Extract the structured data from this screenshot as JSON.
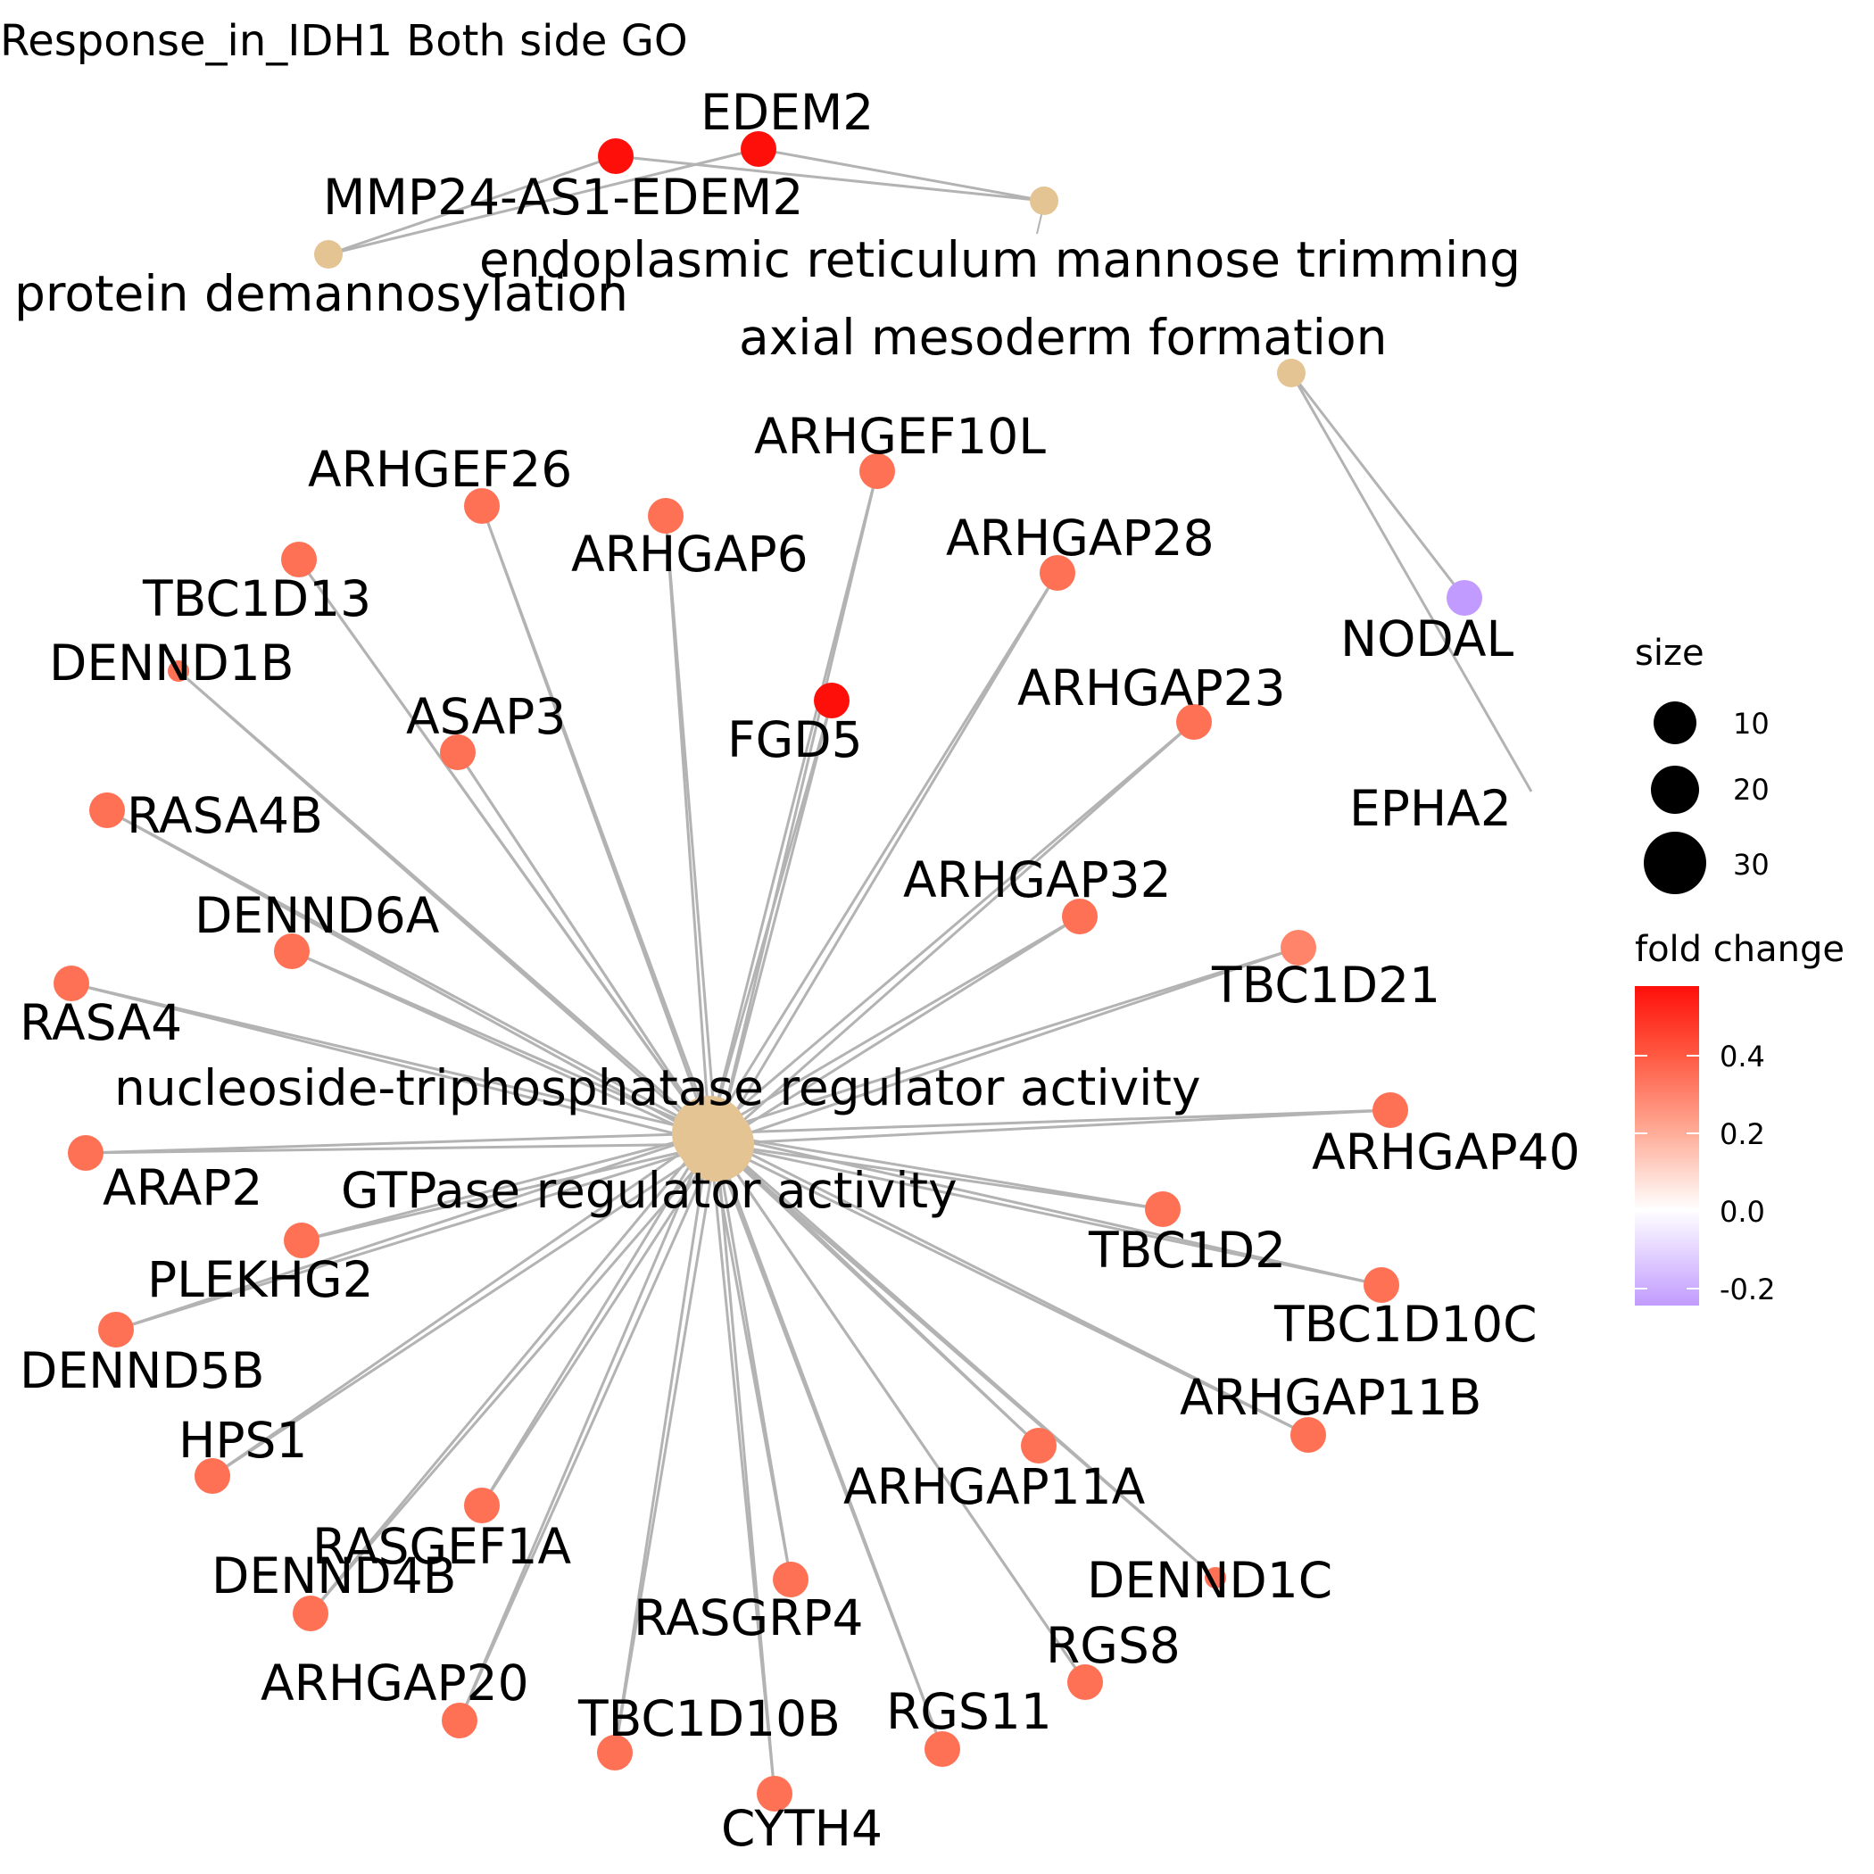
{
  "title": "Response_in_IDH1 Both side GO",
  "categories": [
    {
      "id": "gtpase",
      "label_a": "nucleoside-triphosphatase regulator activity",
      "label_b": "GTPase regulator activity",
      "color": "#E5C494"
    },
    {
      "id": "er_mannose",
      "label": "endoplasmic reticulum mannose trimming",
      "color": "#E5C494"
    },
    {
      "id": "demannosylation",
      "label": "protein demannosylation",
      "color": "#E5C494"
    },
    {
      "id": "axial",
      "label": "axial mesoderm formation",
      "color": "#E5C494"
    }
  ],
  "genes": [
    {
      "name": "EDEM2",
      "fold_change": 0.58,
      "color": "#FF0F0A"
    },
    {
      "name": "MMP24-AS1-EDEM2",
      "fold_change": 0.58,
      "color": "#FF0F0A"
    },
    {
      "name": "NODAL",
      "fold_change": -0.2,
      "color": "#C19BFF"
    },
    {
      "name": "EPHA2",
      "fold_change": null,
      "color": null
    },
    {
      "name": "FGD5",
      "fold_change": 0.58,
      "color": "#FF0F0A"
    },
    {
      "name": "ARHGEF26",
      "fold_change": 0.4,
      "color": "#FF7155"
    },
    {
      "name": "ARHGAP6",
      "fold_change": 0.4,
      "color": "#FF7155"
    },
    {
      "name": "ARHGEF10L",
      "fold_change": 0.4,
      "color": "#FF7155"
    },
    {
      "name": "ARHGAP28",
      "fold_change": 0.4,
      "color": "#FF7155"
    },
    {
      "name": "TBC1D13",
      "fold_change": 0.4,
      "color": "#FF7155"
    },
    {
      "name": "DENND1B",
      "fold_change": 0.4,
      "color": "#FF7155"
    },
    {
      "name": "ASAP3",
      "fold_change": 0.4,
      "color": "#FF7155"
    },
    {
      "name": "ARHGAP23",
      "fold_change": 0.4,
      "color": "#FF7155"
    },
    {
      "name": "RASA4B",
      "fold_change": 0.4,
      "color": "#FF7155"
    },
    {
      "name": "ARHGAP32",
      "fold_change": 0.4,
      "color": "#FF7155"
    },
    {
      "name": "DENND6A",
      "fold_change": 0.4,
      "color": "#FF7155"
    },
    {
      "name": "TBC1D21",
      "fold_change": 0.33,
      "color": "#FF8469"
    },
    {
      "name": "RASA4",
      "fold_change": 0.4,
      "color": "#FF7155"
    },
    {
      "name": "ARHGAP40",
      "fold_change": 0.4,
      "color": "#FF7155"
    },
    {
      "name": "ARAP2",
      "fold_change": 0.4,
      "color": "#FF7155"
    },
    {
      "name": "TBC1D2",
      "fold_change": 0.4,
      "color": "#FF7155"
    },
    {
      "name": "PLEKHG2",
      "fold_change": 0.4,
      "color": "#FF7155"
    },
    {
      "name": "TBC1D10C",
      "fold_change": 0.4,
      "color": "#FF7155"
    },
    {
      "name": "DENND5B",
      "fold_change": 0.4,
      "color": "#FF7155"
    },
    {
      "name": "ARHGAP11B",
      "fold_change": 0.4,
      "color": "#FF7155"
    },
    {
      "name": "HPS1",
      "fold_change": 0.4,
      "color": "#FF7155"
    },
    {
      "name": "ARHGAP11A",
      "fold_change": 0.4,
      "color": "#FF7155"
    },
    {
      "name": "RASGEF1A",
      "fold_change": 0.4,
      "color": "#FF7155"
    },
    {
      "name": "DENND4B",
      "fold_change": 0.4,
      "color": "#FF7155"
    },
    {
      "name": "DENND1C",
      "fold_change": 0.4,
      "color": "#FF7155"
    },
    {
      "name": "RASGRP4",
      "fold_change": 0.4,
      "color": "#FF7155"
    },
    {
      "name": "RGS8",
      "fold_change": 0.4,
      "color": "#FF7155"
    },
    {
      "name": "ARHGAP20",
      "fold_change": 0.4,
      "color": "#FF7155"
    },
    {
      "name": "TBC1D10B",
      "fold_change": 0.4,
      "color": "#FF7155"
    },
    {
      "name": "RGS11",
      "fold_change": 0.4,
      "color": "#FF7155"
    },
    {
      "name": "CYTH4",
      "fold_change": 0.4,
      "color": "#FF7155"
    }
  ],
  "legend": {
    "size_title": "size",
    "size_labels": [
      "10",
      "20",
      "30"
    ],
    "color_title": "fold change",
    "color_labels": [
      "0.4",
      "0.2",
      "0.0",
      "-0.2"
    ],
    "gradient_colors": [
      "#FF0F0A",
      "#FF6E55",
      "#FFFFFF",
      "#C19BFF"
    ]
  }
}
